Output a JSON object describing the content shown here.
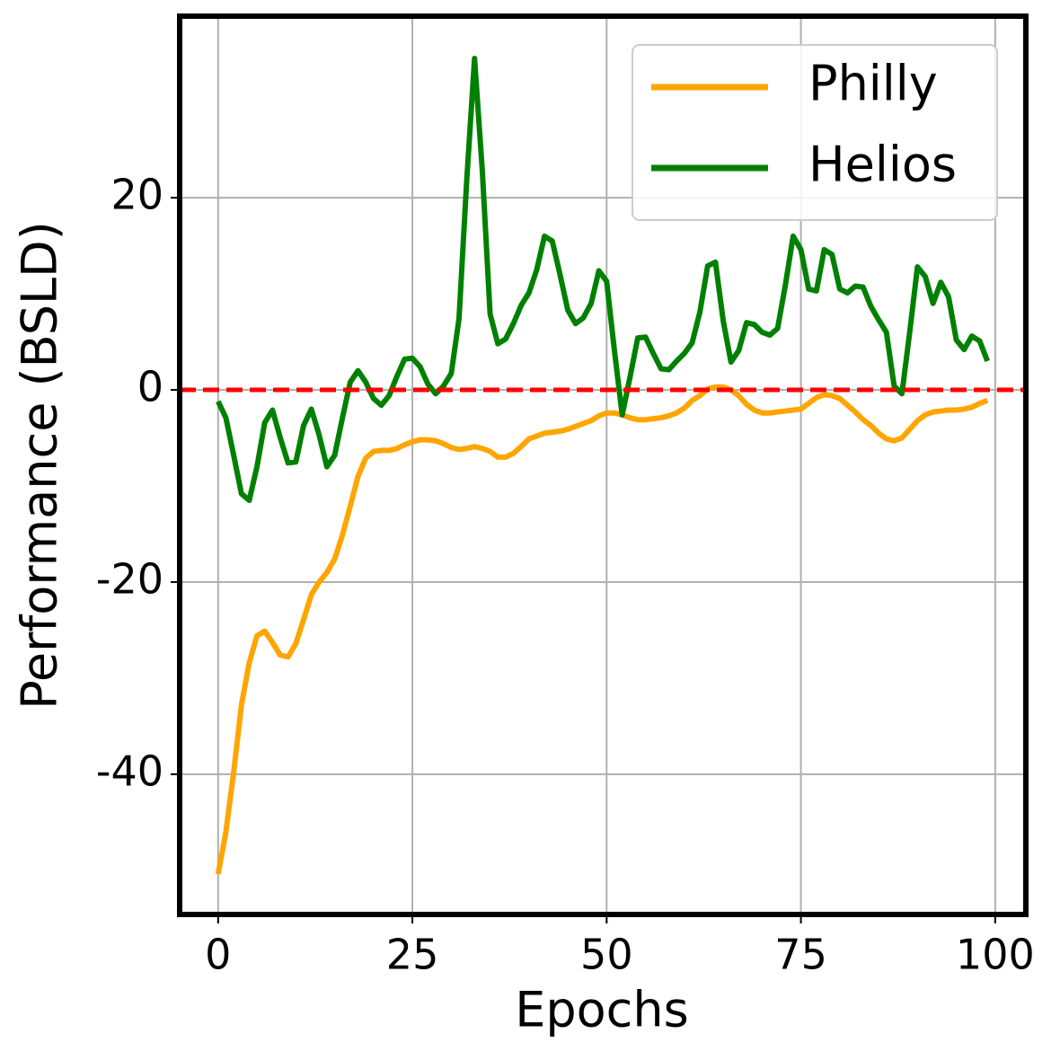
{
  "chart_data": {
    "type": "line",
    "x_label": "Epochs",
    "y_label": "Performance (BSLD)",
    "x": [
      0,
      1,
      2,
      3,
      4,
      5,
      6,
      7,
      8,
      9,
      10,
      11,
      12,
      13,
      14,
      15,
      16,
      17,
      18,
      19,
      20,
      21,
      22,
      23,
      24,
      25,
      26,
      27,
      28,
      29,
      30,
      31,
      32,
      33,
      34,
      35,
      36,
      37,
      38,
      39,
      40,
      41,
      42,
      43,
      44,
      45,
      46,
      47,
      48,
      49,
      50,
      51,
      52,
      53,
      54,
      55,
      56,
      57,
      58,
      59,
      60,
      61,
      62,
      63,
      64,
      65,
      66,
      67,
      68,
      69,
      70,
      71,
      72,
      73,
      74,
      75,
      76,
      77,
      78,
      79,
      80,
      81,
      82,
      83,
      84,
      85,
      86,
      87,
      88,
      89,
      90,
      91,
      92,
      93,
      94,
      95,
      96,
      97,
      98,
      99
    ],
    "series": [
      {
        "name": "Philly",
        "color": "#ffa500",
        "values": [
          -50.4,
          -46,
          -39.8,
          -32.8,
          -28.4,
          -25.6,
          -25.1,
          -26.3,
          -27.6,
          -27.8,
          -26.4,
          -23.9,
          -21.3,
          -20,
          -19,
          -17.6,
          -15.1,
          -12.1,
          -9,
          -7.1,
          -6.4,
          -6.3,
          -6.3,
          -6.1,
          -5.7,
          -5.4,
          -5.2,
          -5.2,
          -5.3,
          -5.6,
          -6,
          -6.2,
          -6.1,
          -5.9,
          -6.1,
          -6.4,
          -7,
          -7,
          -6.6,
          -5.9,
          -5.1,
          -4.8,
          -4.5,
          -4.4,
          -4.3,
          -4.1,
          -3.8,
          -3.5,
          -3.2,
          -2.7,
          -2.4,
          -2.4,
          -2.6,
          -2.9,
          -3.1,
          -3.1,
          -3,
          -2.9,
          -2.7,
          -2.4,
          -1.9,
          -1.1,
          -0.6,
          0.1,
          0.3,
          0.3,
          0,
          -0.6,
          -1.5,
          -2.1,
          -2.4,
          -2.4,
          -2.3,
          -2.2,
          -2.1,
          -2,
          -1.4,
          -0.8,
          -0.5,
          -0.6,
          -0.9,
          -1.6,
          -2.3,
          -3.1,
          -3.7,
          -4.5,
          -5.1,
          -5.3,
          -5,
          -4.1,
          -3.2,
          -2.6,
          -2.3,
          -2.2,
          -2.1,
          -2.1,
          -2,
          -1.8,
          -1.4,
          -1.1
        ]
      },
      {
        "name": "Helios",
        "color": "#008000",
        "values": [
          -1.2,
          -2.9,
          -6.8,
          -10.8,
          -11.5,
          -8,
          -3.4,
          -2.1,
          -5,
          -7.6,
          -7.5,
          -3.7,
          -2,
          -4.7,
          -8,
          -6.8,
          -2.9,
          0.8,
          2,
          0.8,
          -0.9,
          -1.6,
          -0.6,
          1.4,
          3.2,
          3.3,
          2.4,
          0.6,
          -0.4,
          0.4,
          1.7,
          7.4,
          21.9,
          34.5,
          22.8,
          7.9,
          4.8,
          5.3,
          6.9,
          8.8,
          10.1,
          12.5,
          16,
          15.5,
          12,
          8.3,
          6.9,
          7.5,
          9,
          12.4,
          11.3,
          4.1,
          -2.6,
          1.3,
          5.4,
          5.5,
          3.8,
          2.2,
          2.1,
          3,
          3.8,
          4.9,
          8.1,
          12.9,
          13.3,
          7.2,
          2.9,
          4.1,
          7,
          6.8,
          6,
          5.7,
          6.4,
          10.9,
          16,
          14.6,
          10.5,
          10.3,
          14.6,
          14.1,
          10.5,
          10.1,
          10.8,
          10.7,
          8.7,
          7.3,
          6,
          0.4,
          -0.4,
          6,
          12.8,
          11.8,
          9,
          11.2,
          9.7,
          5.2,
          4.2,
          5.6,
          5.1,
          3
        ]
      }
    ],
    "reference_line": {
      "y": 0,
      "color": "#ff0000"
    },
    "xlim": [
      -4.95,
      103.95
    ],
    "ylim": [
      -54.6,
      38.9
    ],
    "xticks": [
      0,
      25,
      50,
      75,
      100
    ],
    "yticks": [
      -40,
      -20,
      0,
      20
    ],
    "grid": true,
    "legend": "upper right"
  }
}
